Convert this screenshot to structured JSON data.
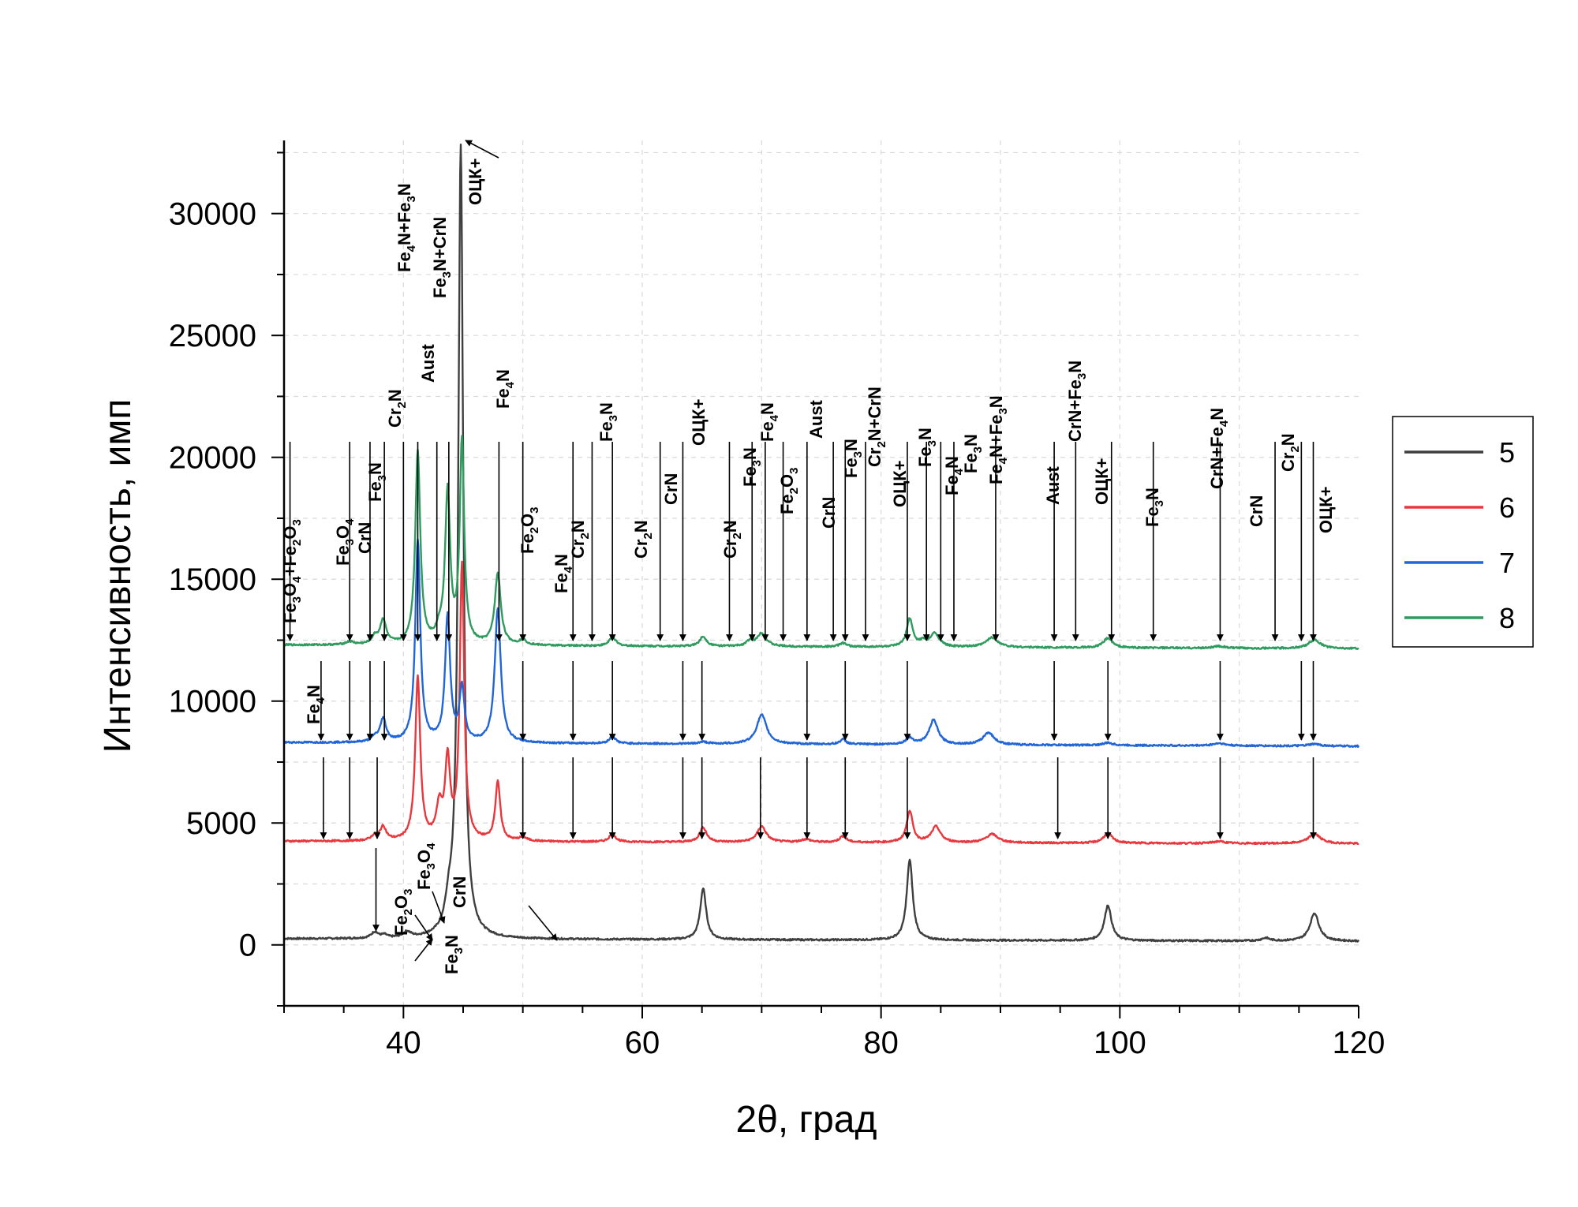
{
  "chart_data": {
    "type": "line",
    "title": "",
    "xlabel": "2θ, град",
    "ylabel": "Интенсивность, имп",
    "xlim": [
      30,
      120
    ],
    "ylim": [
      -2500,
      33000
    ],
    "xticks": [
      40,
      60,
      80,
      100,
      120
    ],
    "yticks": [
      0,
      5000,
      10000,
      15000,
      20000,
      25000,
      30000
    ],
    "grid": true,
    "legend_position": "right",
    "series": [
      {
        "name": "5",
        "color": "#3f3f3f",
        "baseline": 250,
        "baseline_end": 150,
        "peaks": [
          [
            37.6,
            250,
            0.35
          ],
          [
            38.4,
            120,
            0.3
          ],
          [
            40.3,
            230,
            0.4
          ],
          [
            43.8,
            900,
            0.35
          ],
          [
            44.8,
            32500,
            0.25
          ],
          [
            65.1,
            2100,
            0.3
          ],
          [
            82.4,
            3300,
            0.3
          ],
          [
            99.0,
            1450,
            0.35
          ],
          [
            112.2,
            120,
            0.4
          ],
          [
            116.3,
            1150,
            0.45
          ]
        ]
      },
      {
        "name": "6",
        "color": "#e8383d",
        "baseline": 4250,
        "baseline_end": 4150,
        "peaks": [
          [
            37.6,
            200,
            0.35
          ],
          [
            38.3,
            550,
            0.3
          ],
          [
            41.2,
            6700,
            0.25
          ],
          [
            43.0,
            1300,
            0.3
          ],
          [
            43.7,
            3200,
            0.25
          ],
          [
            44.9,
            11300,
            0.22
          ],
          [
            47.9,
            2400,
            0.25
          ],
          [
            50.0,
            150,
            0.4
          ],
          [
            57.5,
            350,
            0.3
          ],
          [
            65.1,
            600,
            0.35
          ],
          [
            70.0,
            650,
            0.45
          ],
          [
            73.7,
            120,
            0.5
          ],
          [
            76.8,
            250,
            0.35
          ],
          [
            82.4,
            1300,
            0.3
          ],
          [
            84.6,
            650,
            0.45
          ],
          [
            89.3,
            350,
            0.6
          ],
          [
            99.0,
            400,
            0.45
          ],
          [
            108.3,
            80,
            0.6
          ],
          [
            116.3,
            400,
            0.6
          ]
        ]
      },
      {
        "name": "7",
        "color": "#2165d6",
        "baseline": 8300,
        "baseline_end": 8150,
        "peaks": [
          [
            37.6,
            180,
            0.3
          ],
          [
            38.3,
            950,
            0.3
          ],
          [
            41.2,
            8300,
            0.25
          ],
          [
            43.7,
            5200,
            0.25
          ],
          [
            44.9,
            2200,
            0.25
          ],
          [
            47.9,
            5500,
            0.3
          ],
          [
            57.5,
            300,
            0.3
          ],
          [
            65.1,
            80,
            0.4
          ],
          [
            70.0,
            1200,
            0.5
          ],
          [
            76.8,
            200,
            0.3
          ],
          [
            82.4,
            250,
            0.4
          ],
          [
            84.4,
            1000,
            0.45
          ],
          [
            89.0,
            500,
            0.55
          ],
          [
            99.0,
            100,
            0.5
          ],
          [
            108.3,
            100,
            0.6
          ],
          [
            116.3,
            80,
            0.6
          ]
        ]
      },
      {
        "name": "8",
        "color": "#2f9b5f",
        "baseline": 12300,
        "baseline_end": 12150,
        "peaks": [
          [
            35.5,
            120,
            0.4
          ],
          [
            37.6,
            300,
            0.3
          ],
          [
            38.3,
            1000,
            0.3
          ],
          [
            41.2,
            7900,
            0.25
          ],
          [
            43.0,
            400,
            0.3
          ],
          [
            43.7,
            6200,
            0.25
          ],
          [
            44.9,
            8300,
            0.22
          ],
          [
            47.9,
            2900,
            0.3
          ],
          [
            50.0,
            200,
            0.35
          ],
          [
            57.5,
            400,
            0.3
          ],
          [
            65.1,
            400,
            0.35
          ],
          [
            69.0,
            200,
            0.35
          ],
          [
            70.0,
            550,
            0.45
          ],
          [
            76.8,
            150,
            0.35
          ],
          [
            82.4,
            1150,
            0.3
          ],
          [
            83.5,
            200,
            0.35
          ],
          [
            84.5,
            550,
            0.45
          ],
          [
            89.3,
            400,
            0.6
          ],
          [
            99.0,
            400,
            0.45
          ],
          [
            108.3,
            80,
            0.6
          ],
          [
            116.3,
            350,
            0.6
          ]
        ]
      }
    ],
    "annotations": [
      {
        "parts": [
          [
            "Fe",
            "sub3"
          ],
          [
            "O",
            "sub4"
          ],
          [
            "+Fe",
            "sub2"
          ],
          [
            "O",
            "sub3"
          ]
        ]
      },
      {
        "parts": [
          [
            "Fe",
            "sub3"
          ],
          [
            "O",
            "sub4"
          ]
        ]
      },
      {
        "parts": [
          [
            "CrN"
          ]
        ]
      },
      {
        "parts": [
          [
            "Fe",
            "sub3"
          ],
          [
            "N"
          ]
        ]
      },
      {
        "parts": [
          [
            "Cr",
            "sub2"
          ],
          [
            "N"
          ]
        ]
      },
      {
        "parts": [
          [
            "Fe",
            "sub4"
          ],
          [
            "N+Fe",
            "sub3"
          ],
          [
            "N"
          ]
        ]
      },
      {
        "parts": [
          [
            "Aust"
          ]
        ]
      },
      {
        "parts": [
          [
            "Fe",
            "sub3"
          ],
          [
            "N+CrN"
          ]
        ]
      },
      {
        "parts": [
          [
            "ОЦК+"
          ]
        ]
      },
      {
        "parts": [
          [
            "Fe",
            "sub4"
          ],
          [
            "N"
          ]
        ]
      },
      {
        "parts": [
          [
            "Fe",
            "sub2"
          ],
          [
            "O",
            "sub3"
          ]
        ]
      },
      {
        "parts": [
          [
            "Fe",
            "sub4"
          ],
          [
            "N"
          ]
        ]
      },
      {
        "parts": [
          [
            "Cr",
            "sub2"
          ],
          [
            "N"
          ]
        ]
      },
      {
        "parts": [
          [
            "Fe",
            "sub3"
          ],
          [
            "N"
          ]
        ]
      },
      {
        "parts": [
          [
            "Cr",
            "sub2"
          ],
          [
            "N"
          ]
        ]
      },
      {
        "parts": [
          [
            "CrN"
          ]
        ]
      },
      {
        "parts": [
          [
            "ОЦК+"
          ]
        ]
      },
      {
        "parts": [
          [
            "Cr",
            "sub2"
          ],
          [
            "N"
          ]
        ]
      },
      {
        "parts": [
          [
            "Fe",
            "sub3"
          ],
          [
            "N"
          ]
        ]
      },
      {
        "parts": [
          [
            "Fe",
            "sub4"
          ],
          [
            "N"
          ]
        ]
      },
      {
        "parts": [
          [
            "Fe",
            "sub2"
          ],
          [
            "O",
            "sub3"
          ]
        ]
      },
      {
        "parts": [
          [
            "Aust"
          ]
        ]
      },
      {
        "parts": [
          [
            "CrN"
          ]
        ]
      },
      {
        "parts": [
          [
            "Fe",
            "sub3"
          ],
          [
            "N"
          ]
        ]
      },
      {
        "parts": [
          [
            "Cr",
            "sub2"
          ],
          [
            "N+CrN"
          ]
        ]
      },
      {
        "parts": [
          [
            "ОЦК+"
          ]
        ]
      },
      {
        "parts": [
          [
            "Fe",
            "sub3"
          ],
          [
            "N"
          ]
        ]
      },
      {
        "parts": [
          [
            "Fe",
            "sub4"
          ],
          [
            "N"
          ]
        ]
      },
      {
        "parts": [
          [
            "Fe",
            "sub3"
          ],
          [
            "N"
          ]
        ]
      },
      {
        "parts": [
          [
            "Fe",
            "sub4"
          ],
          [
            "N+Fe",
            "sub3"
          ],
          [
            "N"
          ]
        ]
      },
      {
        "parts": [
          [
            "Aust"
          ]
        ]
      },
      {
        "parts": [
          [
            "CrN+Fe",
            "sub3"
          ],
          [
            "N"
          ]
        ]
      },
      {
        "parts": [
          [
            "ОЦК+"
          ]
        ]
      },
      {
        "parts": [
          [
            "Fe",
            "sub3"
          ],
          [
            "N"
          ]
        ]
      },
      {
        "parts": [
          [
            "CrN+Fe",
            "sub4"
          ],
          [
            "N"
          ]
        ]
      },
      {
        "parts": [
          [
            "CrN"
          ]
        ]
      },
      {
        "parts": [
          [
            "Cr",
            "sub2"
          ],
          [
            "N"
          ]
        ]
      },
      {
        "parts": [
          [
            "ОЦК+"
          ]
        ]
      },
      {
        "parts": [
          [
            "Fe",
            "sub4"
          ],
          [
            "N"
          ]
        ]
      },
      {
        "parts": [
          [
            "Fe",
            "sub2"
          ],
          [
            "O",
            "sub3"
          ]
        ]
      },
      {
        "parts": [
          [
            "Fe",
            "sub3"
          ],
          [
            "O",
            "sub4"
          ]
        ]
      },
      {
        "parts": [
          [
            "CrN"
          ]
        ]
      },
      {
        "parts": [
          [
            "Fe",
            "sub3"
          ],
          [
            "N"
          ]
        ]
      }
    ],
    "sample_arrow_positions": {
      "8": [
        30.5,
        35.5,
        37.2,
        38.4,
        40.0,
        41.2,
        42.8,
        43.8,
        48.0,
        50.0,
        54.2,
        55.8,
        57.5,
        61.5,
        63.4,
        67.3,
        69.2,
        70.3,
        71.8,
        73.8,
        76.0,
        77.0,
        78.7,
        82.2,
        83.8,
        85.0,
        86.1,
        89.6,
        94.5,
        96.3,
        99.3,
        102.8,
        108.4,
        113.0,
        115.2,
        116.2
      ],
      "7": [
        33.1,
        35.5,
        37.2,
        38.4,
        50.0,
        54.2,
        57.5,
        63.4,
        65.0,
        73.8,
        77.0,
        82.2,
        94.5,
        99.0,
        108.4,
        115.2,
        116.2
      ],
      "6": [
        33.3,
        35.5,
        37.8,
        50.0,
        54.2,
        57.5,
        63.4,
        65.0,
        69.9,
        73.8,
        77.0,
        82.2,
        94.8,
        99.0,
        108.4,
        116.2
      ],
      "5": [
        37.7
      ]
    }
  },
  "legend": {
    "items": [
      {
        "label": "5",
        "color": "#3f3f3f"
      },
      {
        "label": "6",
        "color": "#e8383d"
      },
      {
        "label": "7",
        "color": "#2165d6"
      },
      {
        "label": "8",
        "color": "#2f9b5f"
      }
    ]
  }
}
